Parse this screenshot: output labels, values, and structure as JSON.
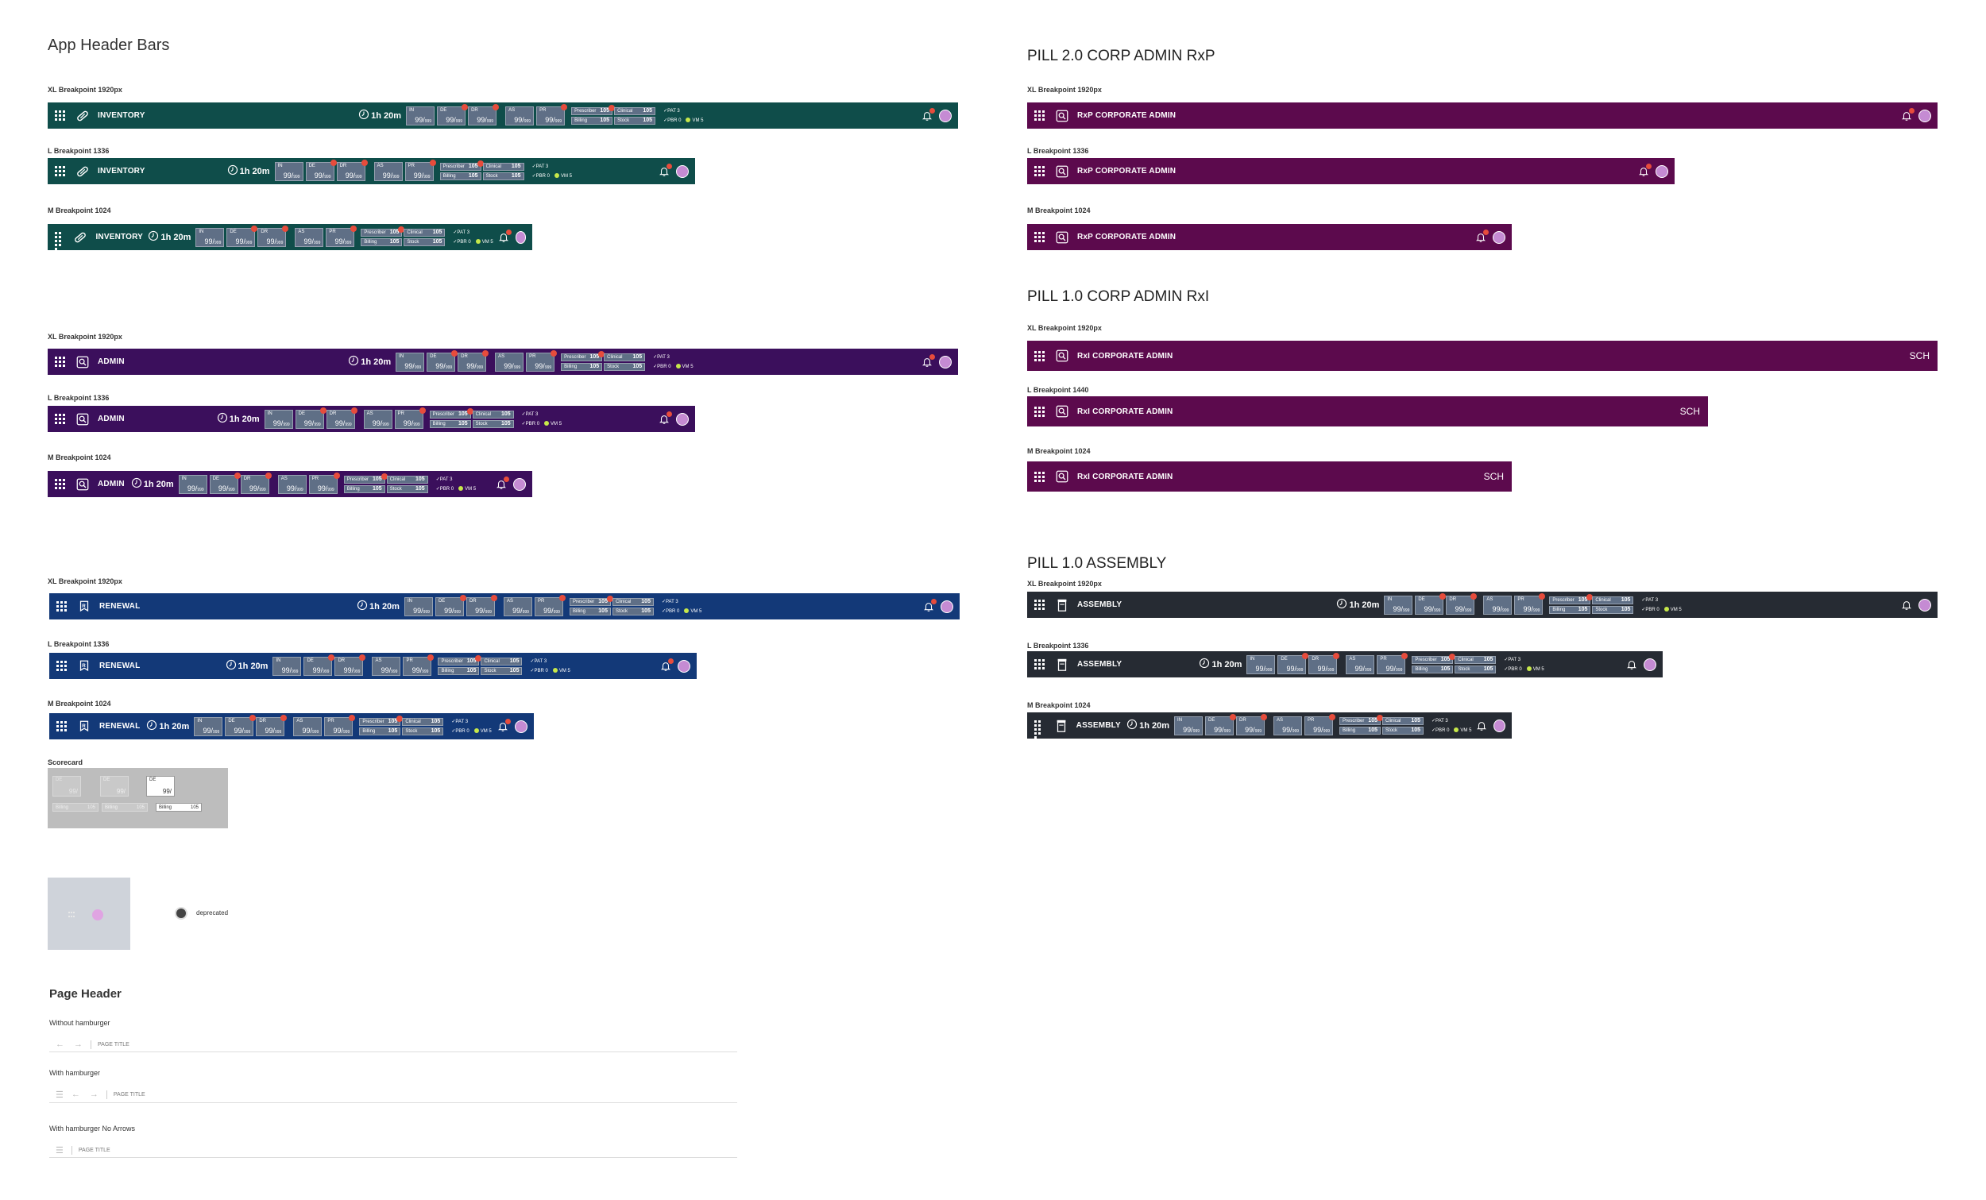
{
  "titles": {
    "app_header_bars": "App Header Bars",
    "pill2_rxp": "PILL 2.0 CORP ADMIN RxP",
    "pill1_rxi": "PILL 1.0 CORP ADMIN RxI",
    "pill1_assembly": "PILL 1.0 ASSEMBLY",
    "page_header": "Page Header"
  },
  "breakpoints": {
    "xl": "XL Breakpoint 1920px",
    "l1336": "L Breakpoint 1336",
    "l1440": "L Breakpoint 1440",
    "m1024": "M Breakpoint 1024"
  },
  "colors": {
    "inventory": "#0f4d4a",
    "admin": "#3b0f5c",
    "renewal": "#133978",
    "rxp": "#5c0a4d",
    "rxi": "#5c0a4d",
    "assembly": "#262b33",
    "scorecard_bg": "#bdbdbd",
    "tile": "#5f6f86",
    "alert_dot": "#e74c3c",
    "avatar": "#c58bd3"
  },
  "apps": {
    "inventory": "INVENTORY",
    "admin": "ADMIN",
    "renewal": "RENEWAL",
    "rxp": "RxP CORPORATE ADMIN",
    "rxi": "RxI CORPORATE ADMIN",
    "assembly": "ASSEMBLY"
  },
  "metrics": {
    "timer": "1h 20m",
    "tile_value": "99/",
    "tile_value_sub": "999",
    "tiles": [
      "IN",
      "DE",
      "DR",
      "AS",
      "PR"
    ],
    "prescriber": "Prescriber",
    "clinical": "Clinical",
    "billing": "Billing",
    "stock": "Stock",
    "cell_value": "105",
    "pat": "✓PAT  3",
    "pbr": "✓PBR  0",
    "vm": "VM  5"
  },
  "rxi_badge": "SCH",
  "scorecard": {
    "label": "Scorecard",
    "tile_key": "DE",
    "tile_value": "99/",
    "billing": "Billing",
    "billing_value": "105"
  },
  "deprecated": "deprecated",
  "page_header": {
    "without": "Without hamburger",
    "with": "With hamburger",
    "no_arrows": "With hamburger No Arrows",
    "page_title": "PAGE TITLE"
  }
}
